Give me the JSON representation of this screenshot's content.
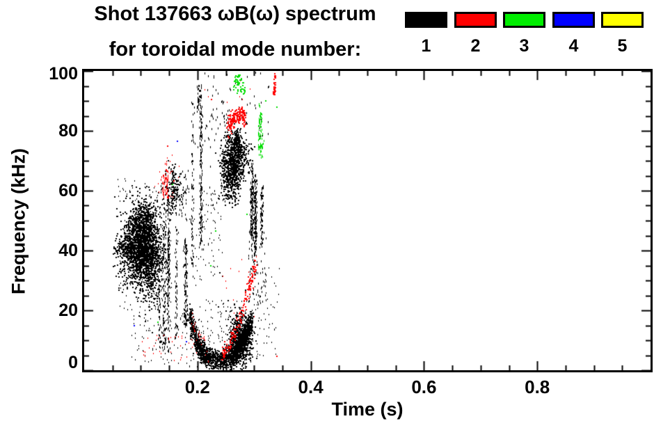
{
  "chart_data": {
    "type": "scatter",
    "title": "Shot 137663 ωB(ω) spectrum",
    "subtitle": "for toroidal mode number:",
    "xlabel": "Time (s)",
    "ylabel": "Frequency (kHz)",
    "xlim": [
      0,
      1.0
    ],
    "ylim": [
      0,
      100
    ],
    "grid": false,
    "legend_position": "top-right",
    "x_ticks": {
      "major": [
        0.2,
        0.4,
        0.6,
        0.8
      ],
      "major_labels": [
        "0.2",
        "0.4",
        "0.6",
        "0.8"
      ],
      "minor_step": 0.05
    },
    "y_ticks": {
      "major": [
        0,
        20,
        40,
        60,
        80,
        100
      ],
      "major_labels": [
        "0",
        "20",
        "40",
        "60",
        "80",
        "100"
      ],
      "minor_step": 5
    },
    "legend": [
      {
        "label": "1",
        "color": "#000000"
      },
      {
        "label": "2",
        "color": "#ff0000"
      },
      {
        "label": "3",
        "color": "#00ee00"
      },
      {
        "label": "4",
        "color": "#0000ff"
      },
      {
        "label": "5",
        "color": "#ffff00"
      }
    ],
    "modes": [
      {
        "mode": 1,
        "color": "#000000"
      },
      {
        "mode": 2,
        "color": "#ff0000"
      },
      {
        "mode": 3,
        "color": "#00dd00"
      },
      {
        "mode": 4,
        "color": "#0000ff"
      },
      {
        "mode": 5,
        "color": "#ffff00"
      }
    ],
    "clusters": [
      {
        "mode": 1,
        "type": "blob",
        "t": 0.096,
        "f": 41,
        "st": 0.016,
        "sf": 6.5,
        "n": 1400,
        "w": 2,
        "h": 2
      },
      {
        "mode": 1,
        "type": "blob",
        "t": 0.118,
        "f": 37.5,
        "st": 0.01,
        "sf": 8,
        "n": 500,
        "w": 2,
        "h": 2
      },
      {
        "mode": 1,
        "type": "blob",
        "t": 0.105,
        "f": 47.5,
        "st": 0.012,
        "sf": 5,
        "n": 400,
        "w": 2,
        "h": 2
      },
      {
        "mode": 1,
        "type": "curve",
        "pts": [
          [
            0.056,
            40
          ],
          [
            0.075,
            40.5
          ]
        ],
        "jt": 0.004,
        "jf": 1.5,
        "n": 60,
        "w": 2,
        "h": 2
      },
      {
        "mode": 1,
        "type": "scatter",
        "t0": 0.06,
        "t1": 0.155,
        "f0": 20,
        "f1": 64,
        "n": 200,
        "w": 1,
        "h": 2
      },
      {
        "mode": 1,
        "type": "streaks",
        "t0": 0.13,
        "t1": 0.186,
        "f0": 5,
        "f1": 56,
        "k": 8,
        "n": 550,
        "w": 1,
        "h": 3
      },
      {
        "mode": 1,
        "type": "blob",
        "t": 0.158,
        "f": 60,
        "st": 0.008,
        "sf": 4,
        "n": 140,
        "w": 2,
        "h": 2
      },
      {
        "mode": 1,
        "type": "scatter",
        "t0": 0.135,
        "t1": 0.185,
        "f0": 50,
        "f1": 68,
        "n": 80,
        "w": 1,
        "h": 3
      },
      {
        "mode": 1,
        "type": "streaks",
        "t0": 0.189,
        "t1": 0.214,
        "f0": 25,
        "f1": 96,
        "k": 3,
        "n": 260,
        "w": 1,
        "h": 3
      },
      {
        "mode": 1,
        "type": "scatter",
        "t0": 0.185,
        "t1": 0.245,
        "f0": 28,
        "f1": 60,
        "n": 80,
        "w": 1,
        "h": 2
      },
      {
        "mode": 1,
        "type": "curve",
        "pts": [
          [
            0.186,
            19
          ],
          [
            0.196,
            11
          ],
          [
            0.208,
            6
          ],
          [
            0.222,
            3.5
          ],
          [
            0.24,
            3
          ],
          [
            0.256,
            4
          ],
          [
            0.268,
            6
          ],
          [
            0.278,
            9
          ],
          [
            0.288,
            13
          ],
          [
            0.296,
            17
          ]
        ],
        "jt": 0.002,
        "jf": 1.9,
        "n": 1500,
        "w": 2,
        "h": 2
      },
      {
        "mode": 1,
        "type": "blob",
        "t": 0.276,
        "f": 10,
        "st": 0.01,
        "sf": 4.5,
        "n": 600,
        "w": 2,
        "h": 2
      },
      {
        "mode": 1,
        "type": "scatter",
        "t0": 0.18,
        "t1": 0.31,
        "f0": 1,
        "f1": 24,
        "n": 200,
        "w": 1,
        "h": 2
      },
      {
        "mode": 1,
        "type": "scatter",
        "t0": 0.08,
        "t1": 0.18,
        "f0": 2,
        "f1": 20,
        "n": 70,
        "w": 1,
        "h": 2
      },
      {
        "mode": 1,
        "type": "blob",
        "t": 0.267,
        "f": 70.5,
        "st": 0.011,
        "sf": 4.5,
        "n": 700,
        "w": 2,
        "h": 2
      },
      {
        "mode": 1,
        "type": "blob",
        "t": 0.257,
        "f": 63,
        "st": 0.008,
        "sf": 4,
        "n": 220,
        "w": 2,
        "h": 2
      },
      {
        "mode": 1,
        "type": "curve",
        "pts": [
          [
            0.268,
            76
          ],
          [
            0.271,
            79
          ]
        ],
        "jt": 0.002,
        "jf": 1,
        "n": 50,
        "w": 2,
        "h": 2
      },
      {
        "mode": 1,
        "type": "streaks",
        "t0": 0.288,
        "t1": 0.318,
        "f0": 38,
        "f1": 70,
        "k": 5,
        "n": 380,
        "w": 1,
        "h": 3
      },
      {
        "mode": 1,
        "type": "scatter",
        "t0": 0.29,
        "t1": 0.322,
        "f0": 22,
        "f1": 46,
        "n": 80,
        "w": 1,
        "h": 3
      },
      {
        "mode": 1,
        "type": "streaks",
        "t0": 0.196,
        "t1": 0.206,
        "f0": 86,
        "f1": 96,
        "k": 1,
        "n": 35,
        "w": 1,
        "h": 3
      },
      {
        "mode": 1,
        "type": "scatter",
        "t0": 0.19,
        "t1": 0.33,
        "f0": 74,
        "f1": 100,
        "n": 60,
        "w": 1,
        "h": 3
      },
      {
        "mode": 1,
        "type": "scatter",
        "t0": 0.215,
        "t1": 0.255,
        "f0": 55,
        "f1": 95,
        "n": 50,
        "w": 1,
        "h": 3
      },
      {
        "mode": 1,
        "type": "scatter",
        "t0": 0.3,
        "t1": 0.345,
        "f0": 3,
        "f1": 35,
        "n": 40,
        "w": 1,
        "h": 2
      },
      {
        "mode": 2,
        "type": "curve",
        "pts": [
          [
            0.254,
            81.5
          ],
          [
            0.264,
            84
          ],
          [
            0.275,
            85.5
          ],
          [
            0.285,
            85
          ]
        ],
        "jt": 0.0015,
        "jf": 1.3,
        "n": 170,
        "w": 2,
        "h": 2
      },
      {
        "mode": 2,
        "type": "curve",
        "pts": [
          [
            0.243,
            5
          ],
          [
            0.255,
            8
          ],
          [
            0.267,
            13
          ],
          [
            0.278,
            19
          ],
          [
            0.289,
            26
          ],
          [
            0.297,
            31
          ],
          [
            0.303,
            35
          ]
        ],
        "jt": 0.0015,
        "jf": 1.4,
        "n": 150,
        "w": 2,
        "h": 2
      },
      {
        "mode": 2,
        "type": "curve",
        "pts": [
          [
            0.188,
            18
          ],
          [
            0.199,
            12
          ],
          [
            0.212,
            10
          ]
        ],
        "jt": 0.002,
        "jf": 1,
        "n": 22,
        "w": 1,
        "h": 2
      },
      {
        "mode": 2,
        "type": "streaks",
        "t0": 0.132,
        "t1": 0.156,
        "f0": 55,
        "f1": 71,
        "k": 3,
        "n": 60,
        "w": 1,
        "h": 3
      },
      {
        "mode": 2,
        "type": "scatter",
        "t0": 0.123,
        "t1": 0.168,
        "f0": 58,
        "f1": 72,
        "n": 25,
        "w": 1,
        "h": 2
      },
      {
        "mode": 2,
        "type": "scatter",
        "t0": 0.1,
        "t1": 0.22,
        "f0": 2,
        "f1": 12,
        "n": 40,
        "w": 1,
        "h": 2
      },
      {
        "mode": 2,
        "type": "curve",
        "pts": [
          [
            0.3355,
            92
          ],
          [
            0.3375,
            99
          ]
        ],
        "jt": 0.0008,
        "jf": 0.7,
        "n": 40,
        "w": 2,
        "h": 2
      },
      {
        "mode": 2,
        "type": "scatter",
        "t0": 0.21,
        "t1": 0.3,
        "f0": 88,
        "f1": 97,
        "n": 7,
        "w": 1,
        "h": 2
      },
      {
        "mode": 2,
        "type": "scatter",
        "t0": 0.235,
        "t1": 0.305,
        "f0": 15,
        "f1": 40,
        "n": 12,
        "w": 1,
        "h": 2
      },
      {
        "mode": 2,
        "type": "points",
        "pts": [
          [
            0.34,
            4.7
          ],
          [
            0.225,
            90.5
          ],
          [
            0.148,
            75
          ]
        ],
        "w": 2,
        "h": 2
      },
      {
        "mode": 3,
        "type": "blob",
        "t": 0.27,
        "f": 96,
        "st": 0.004,
        "sf": 1.5,
        "n": 40,
        "w": 2,
        "h": 2
      },
      {
        "mode": 3,
        "type": "blob",
        "t": 0.282,
        "f": 94,
        "st": 0.002,
        "sf": 1.2,
        "n": 12,
        "w": 2,
        "h": 2
      },
      {
        "mode": 3,
        "type": "streaks",
        "t0": 0.303,
        "t1": 0.317,
        "f0": 70,
        "f1": 91,
        "k": 2,
        "n": 85,
        "w": 1,
        "h": 3
      },
      {
        "mode": 3,
        "type": "points",
        "pts": [
          [
            0.232,
            46.5
          ],
          [
            0.224,
            35
          ],
          [
            0.13,
            16
          ],
          [
            0.321,
            90
          ],
          [
            0.156,
            62
          ],
          [
            0.288,
            52
          ],
          [
            0.34,
            88
          ]
        ],
        "w": 2,
        "h": 2
      },
      {
        "mode": 4,
        "type": "points",
        "pts": [
          [
            0.089,
            14.8
          ],
          [
            0.18,
            9.5
          ],
          [
            0.165,
            76.5
          ]
        ],
        "w": 2,
        "h": 2
      }
    ]
  }
}
